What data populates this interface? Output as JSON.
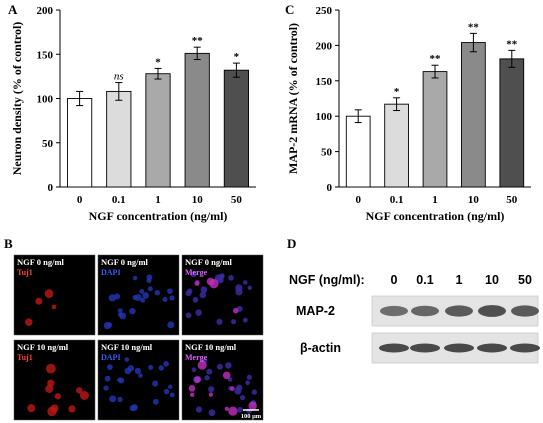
{
  "chart_data": [
    {
      "panel": "A",
      "type": "bar",
      "categories": [
        "0",
        "0.1",
        "1",
        "10",
        "50"
      ],
      "values": [
        100,
        108,
        128,
        151,
        132
      ],
      "errors": [
        8,
        10,
        6,
        7,
        8
      ],
      "significance": [
        "",
        "ns",
        "*",
        "**",
        "*"
      ],
      "xlabel": "NGF concentration (ng/ml)",
      "ylabel": "Neuron density (% of control)",
      "ylim": [
        0,
        200
      ],
      "yticks": [
        "0",
        "50",
        "100",
        "150",
        "200"
      ],
      "bar_colors": [
        "#ffffff",
        "#dcdcdc",
        "#a9a9a9",
        "#8a8a8a",
        "#4f4f4f"
      ]
    },
    {
      "panel": "C",
      "type": "bar",
      "categories": [
        "0",
        "0.1",
        "1",
        "10",
        "50"
      ],
      "values": [
        100,
        117,
        163,
        204,
        181
      ],
      "errors": [
        9,
        9,
        9,
        13,
        12
      ],
      "significance": [
        "",
        "*",
        "**",
        "**",
        "**"
      ],
      "xlabel": "NGF concentration (ng/ml)",
      "ylabel": "MAP-2 mRNA (% of control)",
      "ylim": [
        0,
        250
      ],
      "yticks": [
        "0",
        "50",
        "100",
        "150",
        "200",
        "250"
      ],
      "bar_colors": [
        "#ffffff",
        "#dcdcdc",
        "#a9a9a9",
        "#8a8a8a",
        "#4f4f4f"
      ]
    }
  ],
  "panel_letters": {
    "a": "A",
    "b": "B",
    "c": "C",
    "d": "D"
  },
  "micrographs": {
    "row1_label": "NGF 0 ng/ml",
    "row2_label": "NGF 10 ng/ml",
    "channels": [
      "Tuj1",
      "DAPI",
      "Merge"
    ],
    "scale_bar": "100 μm"
  },
  "blot": {
    "header": "NGF (ng/ml):",
    "lanes": [
      "0",
      "0.1",
      "1",
      "10",
      "50"
    ],
    "rows": [
      "MAP-2",
      "β-actin"
    ]
  }
}
